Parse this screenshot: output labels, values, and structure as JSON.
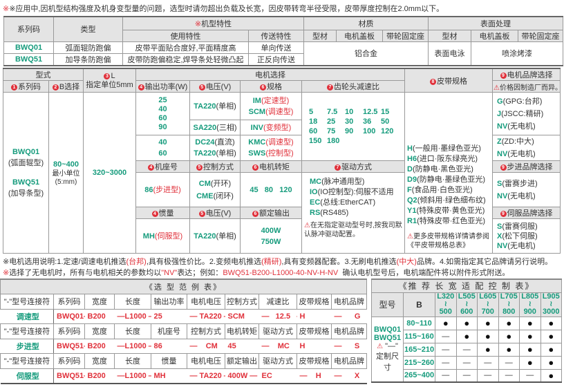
{
  "top_note": "※应用中,因机型结构强度及机身变型量的问题，选型时请勿超出负载及长宽，因皮带转弯半径受限，皮带厚度控制在2.0mm以下。",
  "colors": {
    "green": "#159b7c",
    "red": "#e0303a",
    "header_bg": "#e4e4e4"
  },
  "spec_table": {
    "h_series": "系列码",
    "h_type": "类型",
    "h_features_mark": "※",
    "h_features": "机型特性",
    "h_material": "材质",
    "h_surface": "表面处理",
    "h_use": "使用特性",
    "h_convey": "传送特性",
    "h_mat_profile": "型材",
    "h_mat_cover": "电机盖板",
    "h_mat_seat": "带轮固定座",
    "h_sur_profile": "型材",
    "h_sur_cover": "电机盖板",
    "h_sur_seat": "带轮固定座",
    "rows": [
      {
        "series": "BWQ01",
        "type": "弧面辊防跑偏",
        "use": "皮带平面贴合度好,平面精度高",
        "convey": "单向传送"
      },
      {
        "series": "BWQ51",
        "type": "加导条防跑偏",
        "use": "皮带防跑偏稳定,焊导条处轻微凸起",
        "convey": "正反向传送"
      }
    ],
    "material": "铝合金",
    "surface_profile": "表面电泳",
    "surface_other": "喷涂烤漆"
  },
  "selection": {
    "h_form": "型式",
    "h_series": "系列码",
    "h_b": "B选择",
    "h_l": "L",
    "h_l_unit": "指定单位5mm",
    "h_motor": "电机选择",
    "h_power": "输出功率(W)",
    "h_voltage": "电压(V)",
    "h_spec": "规格",
    "h_ratio": "齿轮头减速比",
    "h_belt": "皮带规格",
    "h_brand": "电机品牌选择",
    "brand_note": "价格因制造厂而异。",
    "series": [
      {
        "code": "BWQ01",
        "desc": "(弧面辊型)"
      },
      {
        "code": "BWQ51",
        "desc": "(加导条型)"
      }
    ],
    "b_range": "80~400",
    "b_unit1": "最小单位",
    "b_unit2": "(5:mm)",
    "l_range": "320~3000",
    "powers_a": [
      "25",
      "40",
      "60",
      "90"
    ],
    "volt_a": {
      "code": "TA220",
      "desc": "(单相)"
    },
    "spec_a": [
      {
        "code": "IM",
        "desc": "(定速型)"
      },
      {
        "code": "SCM",
        "desc": "(调速型)"
      }
    ],
    "volt_b": {
      "code": "SA220",
      "desc": "(三相)"
    },
    "spec_b": {
      "code": "INV",
      "desc": "(变频型)"
    },
    "powers_c": [
      "40",
      "60"
    ],
    "volt_c": [
      {
        "code": "DC24",
        "desc": "(直流)"
      },
      {
        "code": "TA220",
        "desc": "(单相)"
      }
    ],
    "spec_c": [
      {
        "code": "KMC",
        "desc": "(调速型)"
      },
      {
        "code": "SWS",
        "desc": "(控制型)"
      }
    ],
    "ratios": [
      [
        "5",
        "7.5",
        "10",
        "12.5",
        "15"
      ],
      [
        "18",
        "25",
        "30",
        "36",
        "50"
      ],
      [
        "60",
        "75",
        "90",
        "100",
        "120"
      ],
      [
        "150",
        "180"
      ]
    ],
    "belts": [
      {
        "code": "H",
        "desc": "(一般用·墨绿色亚光)"
      },
      {
        "code": "H6",
        "desc": "(进口·阪东绿亮光)"
      },
      {
        "code": "D",
        "desc": "(防静电·黑色亚光)"
      },
      {
        "code": "D9",
        "desc": "(防静电·墨绿色亚光)"
      },
      {
        "code": "F",
        "desc": "(食品用·白色亚光)"
      },
      {
        "code": "Q2",
        "desc": "(倾斜用·绿色细布纹)"
      },
      {
        "code": "Y1",
        "desc": "(特殊皮带·黄色亚光)"
      },
      {
        "code": "R1",
        "desc": "(特殊皮带·红色亚光)"
      }
    ],
    "belt_note": "更多皮带规格详情请参阅《平皮带规格总表》",
    "brands_a": [
      {
        "code": "G",
        "desc": "(GPG:台邦)"
      },
      {
        "code": "J",
        "desc": "(JSCC:精研)"
      },
      {
        "code": "NV",
        "desc": "(无电机)"
      }
    ],
    "brands_b": [
      {
        "code": "Z",
        "desc": "(ZD:中大)"
      },
      {
        "code": "NV",
        "desc": "(无电机)"
      }
    ],
    "stepper": {
      "h_frame": "机座号",
      "h_control": "控制方式",
      "h_torque": "电机转矩",
      "h_drive": "驱动方式",
      "h_brand": "步进品牌选择",
      "frame": {
        "code": "86",
        "desc": "(步进型)"
      },
      "controls": [
        {
          "code": "CM",
          "desc": "(开环)"
        },
        {
          "code": "CME",
          "desc": "(闭环)"
        }
      ],
      "torque": "45   80   120",
      "brands": [
        {
          "code": "S",
          "desc": "(雷赛步进)"
        },
        {
          "code": "NV",
          "desc": "(无电机)"
        }
      ]
    },
    "drives": [
      {
        "code": "MC",
        "desc": "(脉冲通用型)"
      },
      {
        "code": "IO",
        "desc": "(IO控制型):伺服不适用"
      },
      {
        "code": "EC",
        "desc": "(总线:EtherCAT)"
      },
      {
        "code": "RS",
        "desc": "(RS485)"
      }
    ],
    "drive_note": "在无指定驱动型号时,按我司默认脉冲驱动配置。",
    "servo": {
      "h_inertia": "惯量",
      "h_voltage": "电压(V)",
      "h_output": "额定输出",
      "h_brand": "伺服品牌选择",
      "inertia": {
        "code": "MH",
        "desc": "(伺服型)"
      },
      "voltage": {
        "code": "TA220",
        "desc": "(单相)"
      },
      "outputs": [
        "400W",
        "750W"
      ],
      "brands": [
        {
          "code": "S",
          "desc": "(雷赛伺服)"
        },
        {
          "code": "X",
          "desc": "(松下伺服)"
        },
        {
          "code": "NV",
          "desc": "(无电机)"
        }
      ]
    }
  },
  "notes": {
    "n1": [
      "※电机选用说明:1.定速/调速电机推选",
      "(台邦)",
      ",具有极强性价比。2.变频电机推选",
      "(精研)",
      ",具有变频器配套。3.无刷电机推选",
      "(中大)",
      "品牌。4.如需指定其它品牌请另行说明。"
    ],
    "n2": [
      "※",
      "选择了无电机时，所有与电机相关的参数均以",
      "\"NV\"",
      "表达；例如：",
      "BWQ51-B200-L1000-40-NV-H-NV",
      "  确认电机型号后，电机端配件将以附件形式附送。"
    ]
  },
  "example_table": {
    "title": "《选 型 范 例 表》",
    "blocks": [
      {
        "headers": [
          "\"-\"型号连接符",
          "系列码",
          "宽度",
          "长度",
          "输出功率",
          "电机电压",
          "控制方式",
          "减速比",
          "皮带规格",
          "电机品牌"
        ],
        "values": [
          "调速型",
          "BWQ01—",
          "B200",
          "—L1000 —",
          "25",
          "— TA220 —",
          "SCM",
          "—   12.5   —",
          "H",
          "—      G"
        ]
      },
      {
        "headers": [
          "\"-\"型号连接符",
          "系列码",
          "宽度",
          "长度",
          "机座号",
          "控制方式",
          "电机转矩",
          "驱动方式",
          "皮带规格",
          "电机品牌"
        ],
        "values": [
          "步进型",
          "BWQ51—",
          "B200",
          "—L1000 —",
          "86",
          "—    CM    —",
          "45",
          "—    MC    —",
          "H",
          "—      S"
        ]
      },
      {
        "headers": [
          "\"-\"型号连接符",
          "系列码",
          "宽度",
          "长度",
          "惯量",
          "电机电压",
          "额定输出",
          "驱动方式",
          "皮带规格",
          "电机品牌"
        ],
        "values": [
          "伺服型",
          "BWQ51—",
          "B200",
          "—L1000 —",
          "MH",
          "— TA220 —",
          "400W —",
          "EC",
          "—    H",
          "—      X"
        ]
      }
    ]
  },
  "recommend_table": {
    "title": "《推 荐 长 宽 适 配 控 制 表》",
    "h_model": "型号",
    "h_b": "B",
    "lengths": [
      [
        "L320",
        "500"
      ],
      [
        "L505",
        "600"
      ],
      [
        "L605",
        "700"
      ],
      [
        "L705",
        "800"
      ],
      [
        "L805",
        "900"
      ],
      [
        "L905",
        "3000"
      ]
    ],
    "models": [
      "BWQ01",
      "BWQ51"
    ],
    "custom_mark": "\"—\"",
    "custom_label": "定制尺寸",
    "rows": [
      {
        "b": "80~110",
        "cells": [
          "●",
          "●",
          "●",
          "●",
          "●",
          "●"
        ]
      },
      {
        "b": "115~160",
        "cells": [
          "—",
          "●",
          "●",
          "●",
          "●",
          "●"
        ]
      },
      {
        "b": "165~210",
        "cells": [
          "—",
          "—",
          "●",
          "●",
          "●",
          "●"
        ]
      },
      {
        "b": "215~260",
        "cells": [
          "—",
          "—",
          "—",
          "—",
          "●",
          "●"
        ]
      },
      {
        "b": "265~400",
        "cells": [
          "—",
          "—",
          "—",
          "—",
          "—",
          "●"
        ]
      }
    ]
  }
}
